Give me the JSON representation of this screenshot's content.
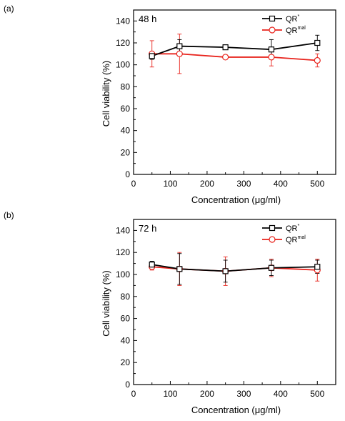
{
  "chart_data": [
    {
      "type": "line",
      "panel_label": "(a)",
      "annotation": "48 h",
      "xlabel": "Concentration (μg/ml)",
      "ylabel": "Cell viability (%)",
      "xlim": [
        0,
        550
      ],
      "ylim": [
        0,
        150
      ],
      "x_ticks": [
        0,
        100,
        200,
        300,
        400,
        500
      ],
      "y_ticks": [
        0,
        20,
        40,
        60,
        80,
        100,
        120,
        140
      ],
      "grid": false,
      "legend_position": "top-right",
      "x": [
        50,
        125,
        250,
        375,
        500
      ],
      "series": [
        {
          "legend_main": "QR",
          "legend_sup": "*",
          "color": "#000000",
          "marker": "square",
          "values": [
            108,
            117,
            116,
            114,
            120
          ],
          "errors": [
            3,
            6,
            2,
            9,
            7
          ]
        },
        {
          "legend_main": "QR",
          "legend_sup": "mal",
          "color": "#e8231c",
          "marker": "circle",
          "values": [
            110,
            110,
            107,
            107,
            104
          ],
          "errors": [
            12,
            18,
            2,
            8,
            6
          ]
        }
      ]
    },
    {
      "type": "line",
      "panel_label": "(b)",
      "annotation": "72 h",
      "xlabel": "Concentration (μg/ml)",
      "ylabel": "Cell viability (%)",
      "xlim": [
        0,
        550
      ],
      "ylim": [
        0,
        150
      ],
      "x_ticks": [
        0,
        100,
        200,
        300,
        400,
        500
      ],
      "y_ticks": [
        0,
        20,
        40,
        60,
        80,
        100,
        120,
        140
      ],
      "grid": false,
      "legend_position": "top-right",
      "x": [
        50,
        125,
        250,
        375,
        500
      ],
      "series": [
        {
          "legend_main": "QR",
          "legend_sup": "*",
          "color": "#000000",
          "marker": "square",
          "values": [
            109,
            105,
            103,
            106,
            107
          ],
          "errors": [
            3,
            14,
            10,
            7,
            6
          ]
        },
        {
          "legend_main": "QR",
          "legend_sup": "mal",
          "color": "#e8231c",
          "marker": "circle",
          "values": [
            107,
            105,
            103,
            106,
            104
          ],
          "errors": [
            3,
            15,
            13,
            8,
            10
          ]
        }
      ]
    }
  ]
}
